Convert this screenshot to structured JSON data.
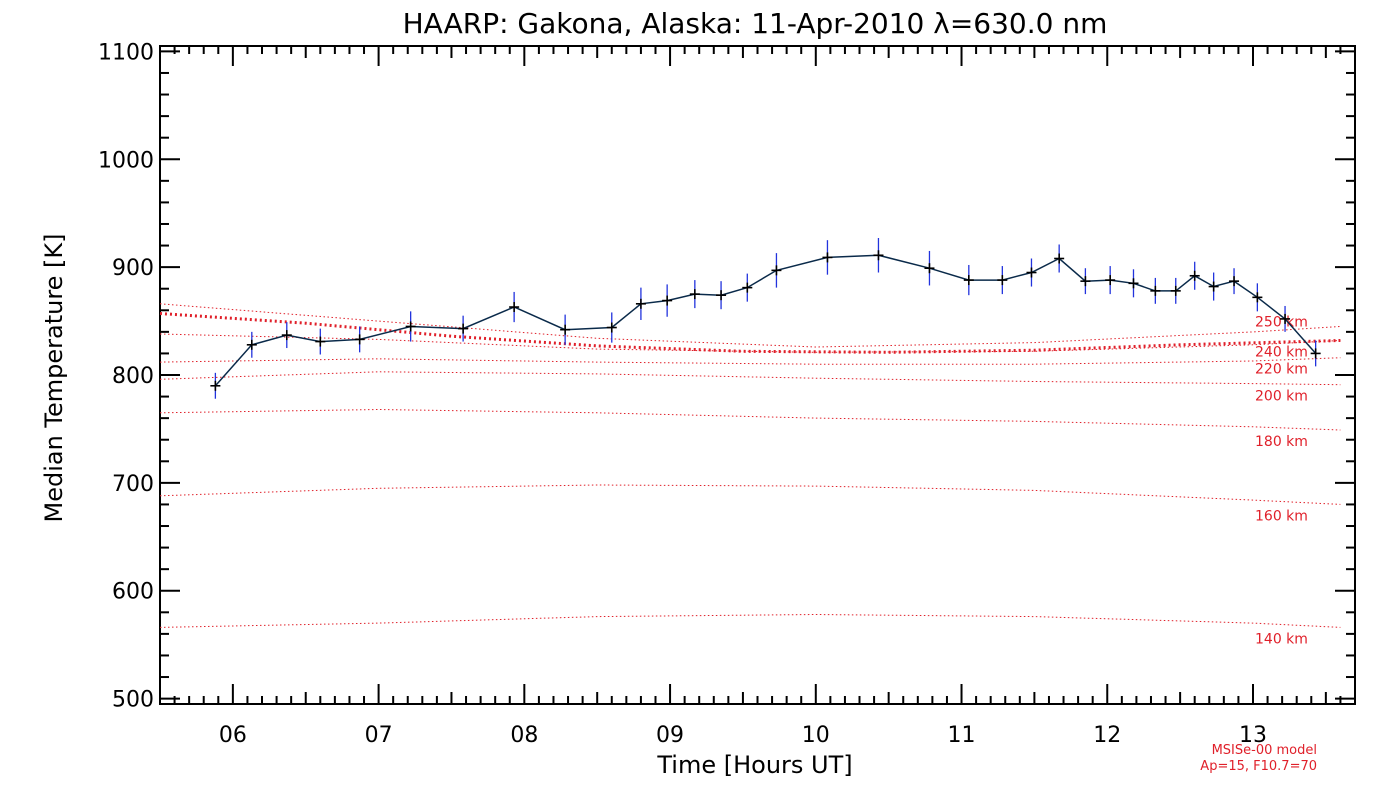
{
  "chart_data": {
    "type": "line",
    "title": "HAARP: Gakona,  Alaska: 11-Apr-2010 λ=630.0 nm",
    "xlabel": "Time [Hours UT]",
    "ylabel": "Median Temperature [K]",
    "xlim": [
      5.5,
      13.7
    ],
    "ylim": [
      495,
      1105
    ],
    "x_ticks": [
      6,
      7,
      8,
      9,
      10,
      11,
      12,
      13
    ],
    "x_tick_labels": [
      "06",
      "07",
      "08",
      "09",
      "10",
      "11",
      "12",
      "13"
    ],
    "y_ticks": [
      500,
      600,
      700,
      800,
      900,
      1000,
      1100
    ],
    "y_tick_labels": [
      "500",
      "600",
      "700",
      "800",
      "900",
      "1000",
      "1100"
    ],
    "grid": false,
    "series": [
      {
        "name": "",
        "color": "#0a2a4a",
        "errorbar_color": "#2233dd",
        "x": [
          5.88,
          6.13,
          6.37,
          6.6,
          6.87,
          7.22,
          7.58,
          7.93,
          8.28,
          8.6,
          8.8,
          8.98,
          9.17,
          9.35,
          9.53,
          9.73,
          10.08,
          10.43,
          10.78,
          11.05,
          11.28,
          11.48,
          11.67,
          11.85,
          12.02,
          12.18,
          12.33,
          12.47,
          12.6,
          12.73,
          12.87,
          13.03,
          13.22,
          13.43
        ],
        "y": [
          790,
          828,
          837,
          831,
          833,
          845,
          843,
          863,
          842,
          844,
          866,
          869,
          875,
          874,
          881,
          897,
          909,
          911,
          899,
          888,
          888,
          895,
          908,
          887,
          888,
          885,
          878,
          878,
          892,
          882,
          887,
          872,
          852,
          820
        ],
        "err": [
          12,
          12,
          12,
          12,
          12,
          14,
          12,
          14,
          14,
          14,
          15,
          15,
          13,
          13,
          13,
          16,
          16,
          16,
          16,
          14,
          13,
          13,
          13,
          12,
          13,
          13,
          12,
          12,
          13,
          13,
          12,
          13,
          12,
          12
        ]
      }
    ],
    "model_lines": [
      {
        "label": "140 km",
        "x": [
          5.5,
          7.0,
          8.5,
          10.0,
          11.5,
          13.0,
          13.6
        ],
        "y": [
          566,
          570,
          576,
          578,
          576,
          570,
          566
        ]
      },
      {
        "label": "160 km",
        "x": [
          5.5,
          7.0,
          8.5,
          10.0,
          11.5,
          13.0,
          13.6
        ],
        "y": [
          688,
          695,
          698,
          697,
          693,
          684,
          680
        ]
      },
      {
        "label": "180 km",
        "x": [
          5.5,
          7.0,
          8.5,
          10.0,
          11.5,
          13.0,
          13.6
        ],
        "y": [
          765,
          768,
          765,
          760,
          757,
          752,
          749
        ]
      },
      {
        "label": "200 km",
        "x": [
          5.5,
          7.0,
          8.5,
          10.0,
          11.5,
          13.0,
          13.6
        ],
        "y": [
          796,
          803,
          801,
          797,
          794,
          792,
          791
        ]
      },
      {
        "label": "220 km",
        "x": [
          5.5,
          7.0,
          8.5,
          10.0,
          11.5,
          13.0,
          13.6
        ],
        "y": [
          812,
          815,
          812,
          810,
          810,
          813,
          816
        ]
      },
      {
        "label": "240 km",
        "x": [
          5.5,
          7.0,
          8.5,
          10.0,
          11.5,
          13.0,
          13.6
        ],
        "y": [
          838,
          833,
          824,
          821,
          822,
          828,
          832
        ]
      },
      {
        "label": "250 km",
        "x": [
          5.5,
          7.0,
          8.5,
          10.0,
          11.5,
          13.0,
          13.6
        ],
        "y": [
          866,
          850,
          834,
          826,
          830,
          840,
          845
        ]
      }
    ],
    "model_average": {
      "x": [
        5.5,
        6.5,
        7.5,
        8.5,
        9.5,
        10.5,
        11.5,
        12.5,
        13.6
      ],
      "y": [
        857,
        848,
        836,
        827,
        822,
        821,
        823,
        828,
        832
      ]
    },
    "annotations": [
      "MSISe-00 model",
      "Ap=15, F10.7=70"
    ]
  }
}
